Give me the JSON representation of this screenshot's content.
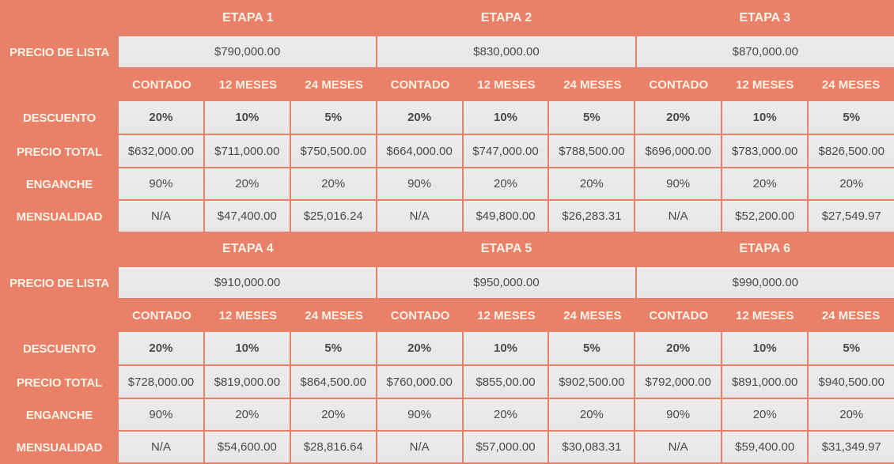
{
  "colors": {
    "background": "#E8806A",
    "cell": "#ECECEC",
    "header_text": "#FFF3E4",
    "cell_text": "#4A4A4A"
  },
  "row_labels": {
    "precio_lista": "PRECIO DE LISTA",
    "descuento": "DESCUENTO",
    "precio_total": "PRECIO TOTAL",
    "enganche": "ENGANCHE",
    "mensualidad": "MENSUALIDAD"
  },
  "plans": [
    "CONTADO",
    "12 MESES",
    "24 MESES"
  ],
  "sections": [
    {
      "etapas": [
        {
          "name": "ETAPA 1",
          "precio_lista": "$790,000.00",
          "descuento": [
            "20%",
            "10%",
            "5%"
          ],
          "precio_total": [
            "$632,000.00",
            "$711,000.00",
            "$750,500.00"
          ],
          "enganche": [
            "90%",
            "20%",
            "20%"
          ],
          "mensualidad": [
            "N/A",
            "$47,400.00",
            "$25,016.24"
          ]
        },
        {
          "name": "ETAPA 2",
          "precio_lista": "$830,000.00",
          "descuento": [
            "20%",
            "10%",
            "5%"
          ],
          "precio_total": [
            "$664,000.00",
            "$747,000.00",
            "$788,500.00"
          ],
          "enganche": [
            "90%",
            "20%",
            "20%"
          ],
          "mensualidad": [
            "N/A",
            "$49,800.00",
            "$26,283.31"
          ]
        },
        {
          "name": "ETAPA 3",
          "precio_lista": "$870,000.00",
          "descuento": [
            "20%",
            "10%",
            "5%"
          ],
          "precio_total": [
            "$696,000.00",
            "$783,000.00",
            "$826,500.00"
          ],
          "enganche": [
            "90%",
            "20%",
            "20%"
          ],
          "mensualidad": [
            "N/A",
            "$52,200.00",
            "$27,549.97"
          ]
        }
      ]
    },
    {
      "etapas": [
        {
          "name": "ETAPA 4",
          "precio_lista": "$910,000.00",
          "descuento": [
            "20%",
            "10%",
            "5%"
          ],
          "precio_total": [
            "$728,000.00",
            "$819,000.00",
            "$864,500.00"
          ],
          "enganche": [
            "90%",
            "20%",
            "20%"
          ],
          "mensualidad": [
            "N/A",
            "$54,600.00",
            "$28,816.64"
          ]
        },
        {
          "name": "ETAPA 5",
          "precio_lista": "$950,000.00",
          "descuento": [
            "20%",
            "10%",
            "5%"
          ],
          "precio_total": [
            "$760,000.00",
            "$855,00.00",
            "$902,500.00"
          ],
          "enganche": [
            "90%",
            "20%",
            "20%"
          ],
          "mensualidad": [
            "N/A",
            "$57,000.00",
            "$30,083.31"
          ]
        },
        {
          "name": "ETAPA 6",
          "precio_lista": "$990,000.00",
          "descuento": [
            "20%",
            "10%",
            "5%"
          ],
          "precio_total": [
            "$792,000.00",
            "$891,000.00",
            "$940,500.00"
          ],
          "enganche": [
            "90%",
            "20%",
            "20%"
          ],
          "mensualidad": [
            "N/A",
            "$59,400.00",
            "$31,349.97"
          ]
        }
      ]
    }
  ]
}
